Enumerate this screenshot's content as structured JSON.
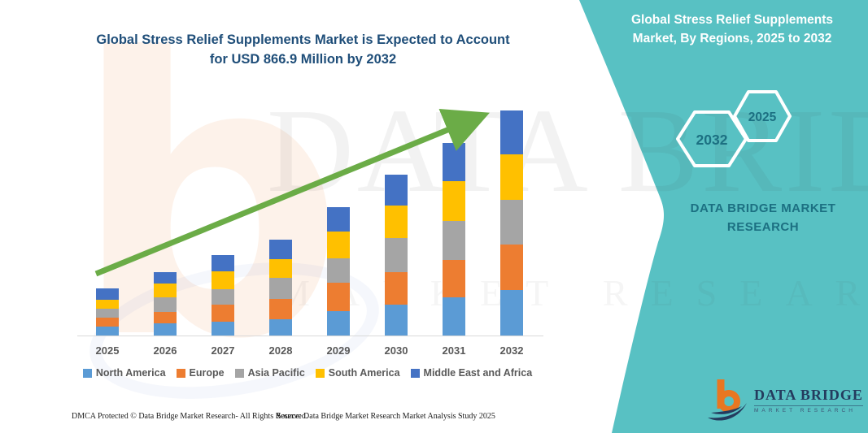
{
  "title": {
    "line1": "Global Stress Relief Supplements Market is Expected to Account",
    "line2": "for USD 866.9 Million by 2032"
  },
  "watermark": {
    "big_text": "DATA BRIDGE",
    "spaced_text": "MARKET RESEARCH",
    "letter_b": "b"
  },
  "panel": {
    "bg_color": "#58C1C3",
    "heading": "Global Stress Relief Supplements Market, By Regions, 2025 to 2032",
    "hexagon_left_label": "2032",
    "hexagon_right_label": "2025",
    "brand_text": "DATA BRIDGE MARKET RESEARCH",
    "logo_name": "DATA BRIDGE",
    "logo_subtitle": "MARKET RESEARCH"
  },
  "footer": {
    "dmca": "DMCA Protected © Data Bridge Market Research-  All Rights Reserved.",
    "source": "Source: Data Bridge Market Research  Market Analysis Study 2025"
  },
  "chart_data": {
    "type": "bar",
    "subtype": "stacked-vertical",
    "title": "Global Stress Relief Supplements Market is Expected to Account for USD 866.9 Million by 2032",
    "unit": "USD Million (estimated from bar heights; 2032 total labeled as 866.9)",
    "categories": [
      "2025",
      "2026",
      "2027",
      "2028",
      "2029",
      "2030",
      "2031",
      "2032"
    ],
    "series": [
      {
        "name": "North America",
        "color": "#5B9BD5",
        "values": [
          35,
          48,
          52,
          63,
          94,
          120,
          146,
          175
        ]
      },
      {
        "name": "Europe",
        "color": "#ED7D31",
        "values": [
          35,
          44,
          66,
          79,
          110,
          125,
          146,
          175
        ]
      },
      {
        "name": "Asia Pacific",
        "color": "#A5A5A5",
        "values": [
          32,
          54,
          60,
          81,
          94,
          131,
          151,
          172
        ]
      },
      {
        "name": "South America",
        "color": "#FFC000",
        "values": [
          37,
          53,
          69,
          70,
          104,
          125,
          151,
          175
        ]
      },
      {
        "name": "Middle East and Africa",
        "color": "#4472C4",
        "values": [
          44,
          44,
          62,
          76,
          94,
          118,
          147,
          170
        ]
      }
    ],
    "totals": [
      183,
      243,
      309,
      369,
      496,
      619,
      741,
      867
    ],
    "ylim": [
      0,
      900
    ],
    "value_axis_visible": false,
    "gridlines": false,
    "legend_position": "bottom",
    "trend_arrow": {
      "present": true,
      "color": "#6BAC47",
      "direction": "up-right"
    },
    "axis_line_color": "#D9D9D9",
    "label_color": "#595959"
  }
}
